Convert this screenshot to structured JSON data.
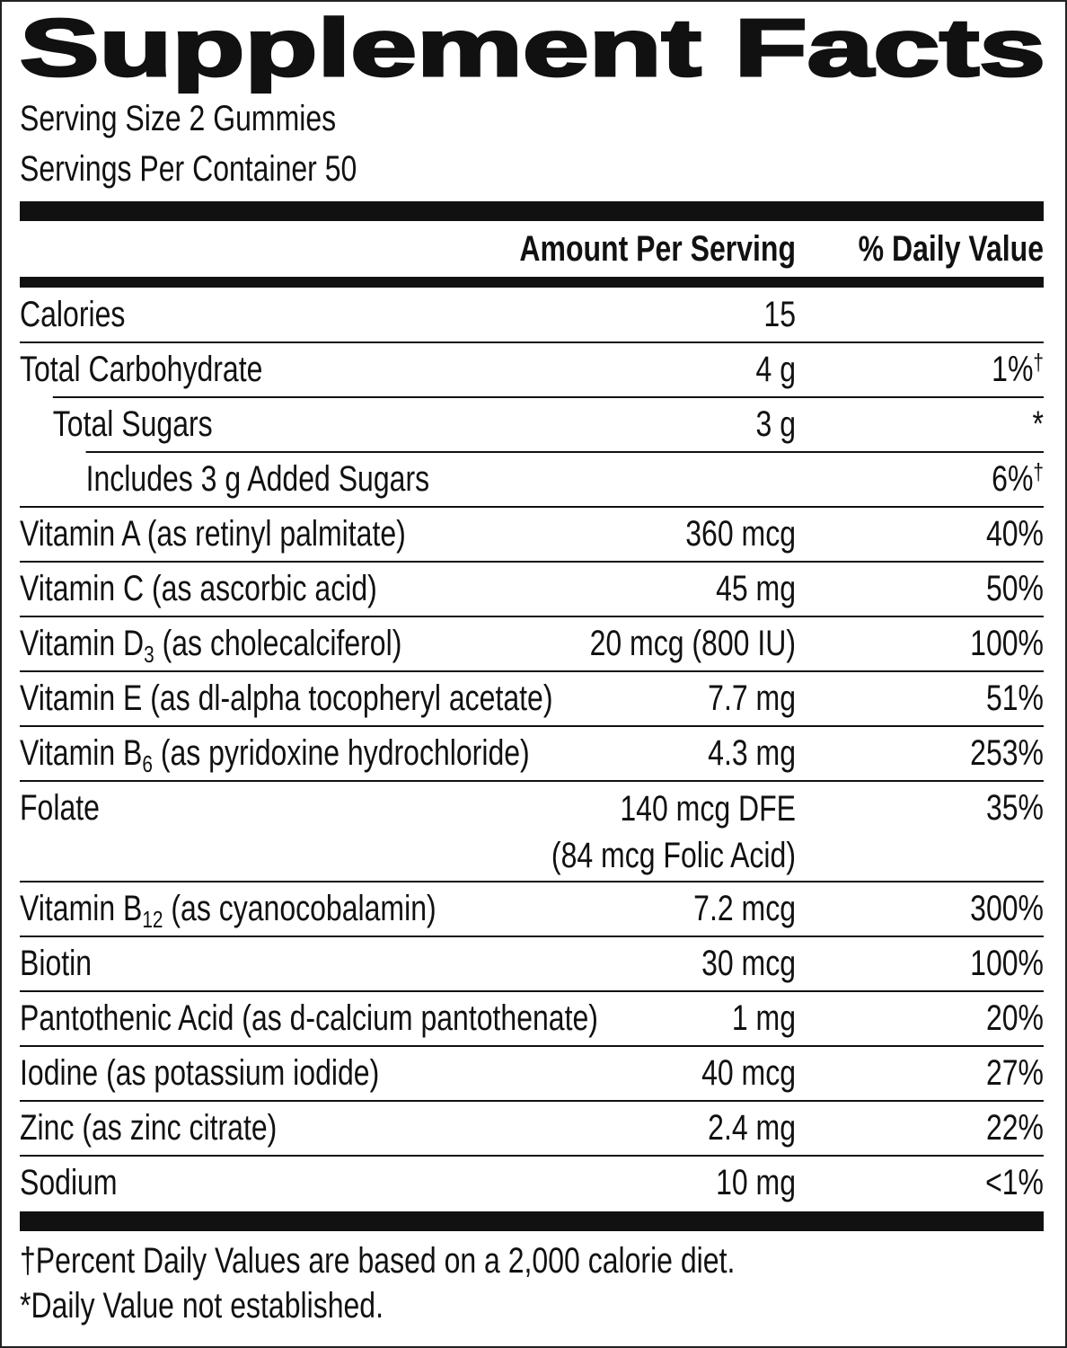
{
  "title": "Supplement Facts",
  "serving_size": "Serving Size 2 Gummies",
  "servings_per_container": "Servings Per Container 50",
  "header": {
    "amount": "Amount Per Serving",
    "daily_value": "% Daily Value"
  },
  "rows": [
    {
      "name": "Calories",
      "amount": "15"
    },
    {
      "name": "Total Carbohydrate",
      "amount": "4 g",
      "daily_value": "1%",
      "dv_mark": "†"
    },
    {
      "name": "Total Sugars",
      "amount": "3 g",
      "daily_value": "*"
    },
    {
      "name": "Includes 3 g Added Sugars",
      "daily_value": "6%",
      "dv_mark": "†"
    },
    {
      "name": "Vitamin A (as retinyl palmitate)",
      "amount": "360 mcg",
      "daily_value": "40%"
    },
    {
      "name": "Vitamin C (as ascorbic acid)",
      "amount": "45 mg",
      "daily_value": "50%"
    },
    {
      "name": "Vitamin D",
      "subscript": "3",
      "detail": "(as cholecalciferol)",
      "amount": "20 mcg (800 IU)",
      "daily_value": "100%"
    },
    {
      "name": "Vitamin E (as dl-alpha tocopheryl acetate)",
      "amount": "7.7 mg",
      "daily_value": "51%"
    },
    {
      "name": "Vitamin B",
      "subscript": "6",
      "detail": "(as pyridoxine hydrochloride)",
      "amount": "4.3 mg",
      "daily_value": "253%"
    },
    {
      "name": "Folate",
      "amount": "140 mcg DFE",
      "amount_note": "(84 mcg Folic Acid)",
      "daily_value": "35%"
    },
    {
      "name": "Vitamin B",
      "subscript": "12",
      "detail": "(as cyanocobalamin)",
      "amount": "7.2 mcg",
      "daily_value": "300%"
    },
    {
      "name": "Biotin",
      "amount": "30 mcg",
      "daily_value": "100%"
    },
    {
      "name": "Pantothenic Acid (as d-calcium pantothenate)",
      "amount": "1 mg",
      "daily_value": "20%"
    },
    {
      "name": "Iodine (as potassium iodide)",
      "amount": "40 mcg",
      "daily_value": "27%"
    },
    {
      "name": "Zinc (as zinc citrate)",
      "amount": "2.4 mg",
      "daily_value": "22%"
    },
    {
      "name": "Sodium",
      "amount": "10 mg",
      "daily_value": "<1%"
    }
  ],
  "footnotes": [
    "†Percent Daily Values are based on a 2,000 calorie diet.",
    "*Daily Value not established."
  ]
}
